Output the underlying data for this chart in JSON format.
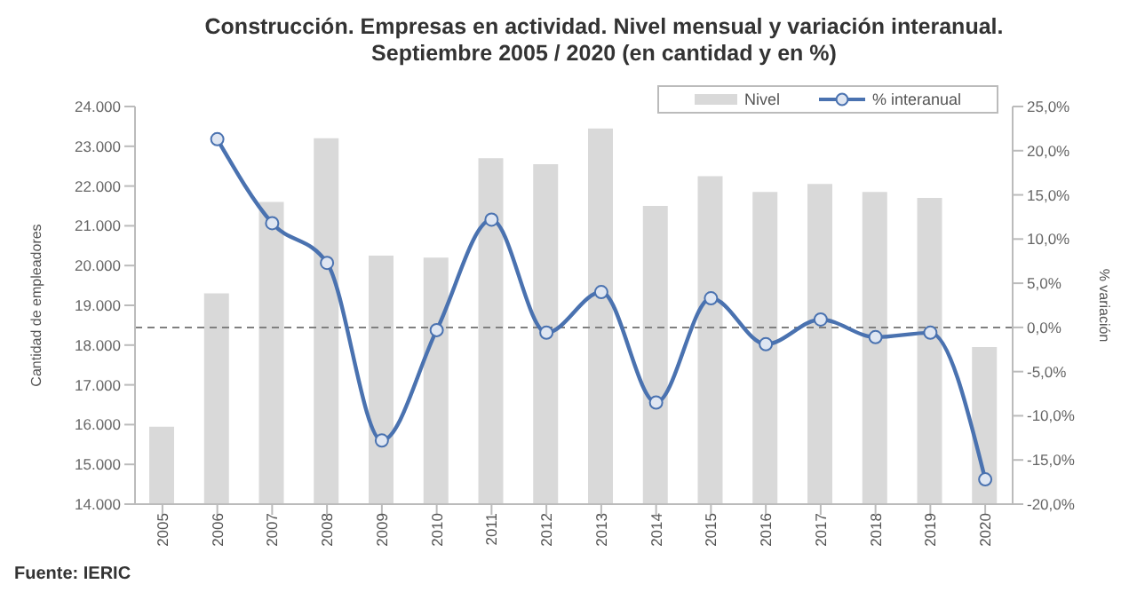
{
  "chart_data": {
    "type": "bar",
    "title": "Construcción. Empresas en actividad. Nivel mensual y variación interanual.\nSeptiembre 2005 / 2020 (en cantidad y en %)",
    "ylabel": "Cantidad de empleadores",
    "y2label": "% variación",
    "annotations": [
      "Fuente: IERIC"
    ],
    "categories": [
      "2005",
      "2006",
      "2007",
      "2008",
      "2009",
      "2010",
      "2011",
      "2012",
      "2013",
      "2014",
      "2015",
      "2016",
      "2017",
      "2018",
      "2019",
      "2020"
    ],
    "series": [
      {
        "name": "Nivel",
        "color": "#d9d9d9",
        "values": [
          15950,
          19300,
          21600,
          23200,
          20250,
          20200,
          22700,
          22550,
          23450,
          21500,
          22250,
          21850,
          22050,
          21850,
          21700,
          17950
        ]
      },
      {
        "name": "% interanual",
        "type": "line",
        "axis": "y2",
        "color": "#4a72b0",
        "marker": "circle",
        "values": [
          null,
          21.3,
          11.8,
          7.3,
          -12.8,
          -0.3,
          12.2,
          -0.6,
          4.0,
          -8.5,
          3.3,
          -1.9,
          0.9,
          -1.1,
          -0.6,
          -17.2
        ]
      }
    ],
    "ylim": [
      14000,
      24000
    ],
    "yticks": [
      {
        "value": 14000,
        "label": "14.000"
      },
      {
        "value": 15000,
        "label": "15.000"
      },
      {
        "value": 16000,
        "label": "16.000"
      },
      {
        "value": 17000,
        "label": "17.000"
      },
      {
        "value": 18000,
        "label": "18.000"
      },
      {
        "value": 19000,
        "label": "19.000"
      },
      {
        "value": 20000,
        "label": "20.000"
      },
      {
        "value": 21000,
        "label": "21.000"
      },
      {
        "value": 22000,
        "label": "22.000"
      },
      {
        "value": 23000,
        "label": "23.000"
      },
      {
        "value": 24000,
        "label": "24.000"
      }
    ],
    "y2lim": [
      -20,
      25
    ],
    "y2ticks": [
      {
        "value": -20,
        "label": "-20,0%"
      },
      {
        "value": -15,
        "label": "-15,0%"
      },
      {
        "value": -10,
        "label": "-10,0%"
      },
      {
        "value": -5,
        "label": "-5,0%"
      },
      {
        "value": 0,
        "label": "0,0%"
      },
      {
        "value": 5,
        "label": "5,0%"
      },
      {
        "value": 10,
        "label": "10,0%"
      },
      {
        "value": 15,
        "label": "15,0%"
      },
      {
        "value": 20,
        "label": "20,0%"
      },
      {
        "value": 25,
        "label": "25,0%"
      }
    ],
    "ref_lines": [
      {
        "axis": "y2",
        "value": 0,
        "color": "#808080",
        "line_style": "dashed"
      }
    ],
    "legend": "top right"
  }
}
